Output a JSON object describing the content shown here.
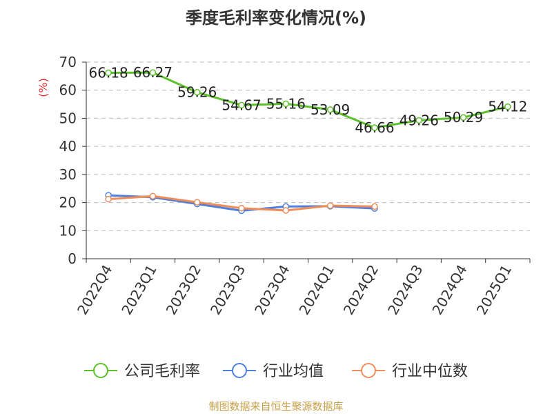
{
  "chart_data": {
    "type": "line",
    "title": "季度毛利率变化情况(%)",
    "ylabel": "(%)",
    "xlabel": "",
    "ylim": [
      0,
      70
    ],
    "yticks": [
      0,
      10,
      20,
      30,
      40,
      50,
      60,
      70
    ],
    "grid": true,
    "legend": "bottom",
    "categories": [
      "2022Q4",
      "2023Q1",
      "2023Q2",
      "2023Q3",
      "2023Q4",
      "2024Q1",
      "2024Q2",
      "2024Q3",
      "2024Q4",
      "2025Q1"
    ],
    "series": [
      {
        "name": "公司毛利率",
        "color": "#5cc02a",
        "show_labels": true,
        "values": [
          66.18,
          66.27,
          59.26,
          54.67,
          55.16,
          53.09,
          46.66,
          49.26,
          50.29,
          54.12
        ]
      },
      {
        "name": "行业均值",
        "color": "#4f7fdc",
        "show_labels": false,
        "values": [
          22.6,
          21.9,
          19.5,
          17.1,
          18.6,
          18.7,
          17.9,
          null,
          null,
          null
        ]
      },
      {
        "name": "行业中位数",
        "color": "#f08c5a",
        "show_labels": false,
        "values": [
          21.2,
          22.3,
          20.1,
          18.0,
          17.2,
          18.9,
          18.6,
          null,
          null,
          null
        ]
      }
    ],
    "source": "制图数据来自恒生聚源数据库"
  }
}
